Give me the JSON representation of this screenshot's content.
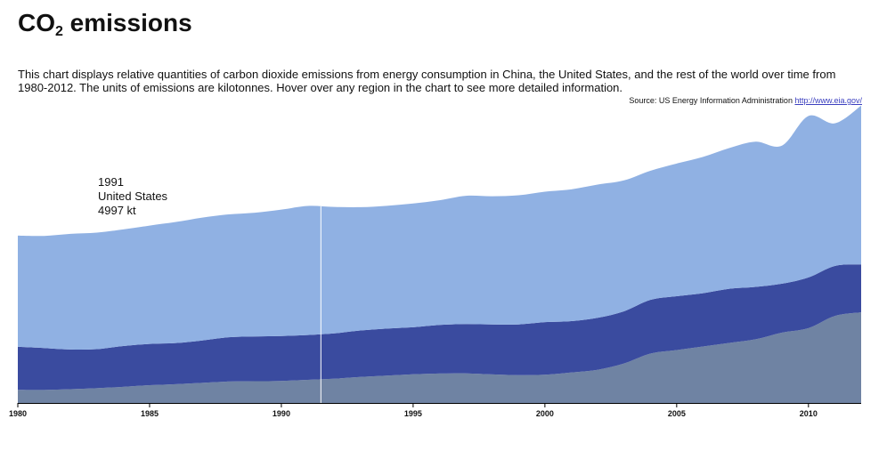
{
  "header": {
    "title_main": "CO",
    "title_sub": "2",
    "title_rest": " emissions",
    "description": "This chart displays relative quantities of carbon dioxide emissions from energy consumption in China, the United States, and the rest of the world over time from 1980-2012. The units of emissions are kilotonnes. Hover over any region in the chart to see more detailed information.",
    "source_text": "Source: US Energy Information Administration ",
    "source_link": "http://www.eia.gov/"
  },
  "tooltip": {
    "year": "1991",
    "region": "United States",
    "value": "4997 kt"
  },
  "chart_data": {
    "type": "area",
    "stacked": true,
    "x": [
      1980,
      1981,
      1982,
      1983,
      1984,
      1985,
      1986,
      1987,
      1988,
      1989,
      1990,
      1991,
      1992,
      1993,
      1994,
      1995,
      1996,
      1997,
      1998,
      1999,
      2000,
      2001,
      2002,
      2003,
      2004,
      2005,
      2006,
      2007,
      2008,
      2009,
      2010,
      2011,
      2012
    ],
    "xlim": [
      1980,
      2012
    ],
    "x_ticks": [
      1980,
      1985,
      1990,
      1995,
      2000,
      2005,
      2010
    ],
    "ylim": [
      0,
      37000
    ],
    "highlight_x": 1991.5,
    "colors": {
      "China": "#6f83a3",
      "United States": "#3a4b9f",
      "Rest of world": "#90b1e3",
      "highlight": "#ffffff"
    },
    "series": [
      {
        "name": "China",
        "values": [
          1460,
          1450,
          1540,
          1650,
          1800,
          1980,
          2100,
          2240,
          2390,
          2430,
          2460,
          2580,
          2700,
          2900,
          3050,
          3200,
          3280,
          3300,
          3190,
          3100,
          3150,
          3400,
          3700,
          4400,
          5500,
          5900,
          6300,
          6700,
          7100,
          7850,
          8350,
          9700,
          10100
        ]
      },
      {
        "name": "United States",
        "values": [
          4800,
          4680,
          4420,
          4350,
          4550,
          4600,
          4580,
          4730,
          4940,
          4990,
          5000,
          4997,
          5060,
          5180,
          5240,
          5240,
          5420,
          5500,
          5560,
          5660,
          5860,
          5720,
          5800,
          5820,
          5990,
          6000,
          5940,
          6030,
          5840,
          5450,
          5650,
          5580,
          5350
        ]
      },
      {
        "name": "Rest of world",
        "values": [
          12400,
          12500,
          12900,
          13000,
          13000,
          13200,
          13500,
          13700,
          13700,
          13800,
          14100,
          14400,
          14100,
          13750,
          13700,
          13800,
          13900,
          14300,
          14300,
          14400,
          14550,
          14700,
          14850,
          14600,
          14400,
          14800,
          15200,
          15700,
          16200,
          15400,
          18000,
          15900,
          17700
        ]
      }
    ]
  }
}
